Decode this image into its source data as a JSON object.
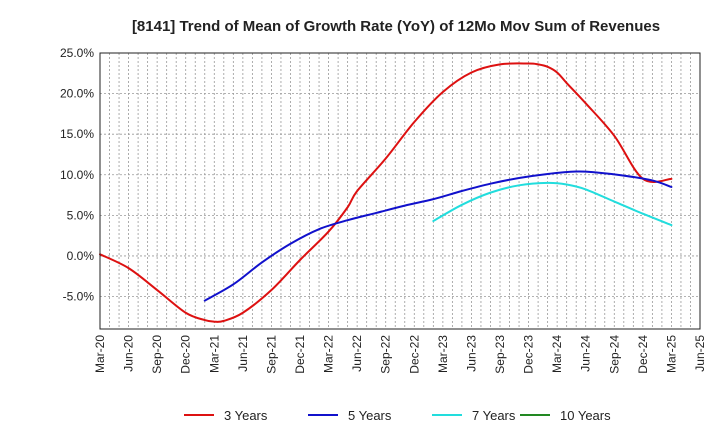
{
  "chart_data": {
    "type": "line",
    "title": "[8141]  Trend of Mean of Growth Rate (YoY) of 12Mo Mov Sum of Revenues",
    "xlabel": "",
    "ylabel": "",
    "ylim": [
      -9,
      25
    ],
    "yticks": [
      25,
      20,
      15,
      10,
      5,
      0,
      -5
    ],
    "ytick_labels": [
      "25.0%",
      "20.0%",
      "15.0%",
      "10.0%",
      "5.0%",
      "0.0%",
      "-5.0%"
    ],
    "x_range": [
      0,
      63
    ],
    "xticks": [
      0,
      3,
      6,
      9,
      12,
      15,
      18,
      21,
      24,
      27,
      30,
      33,
      36,
      39,
      42,
      45,
      48,
      51,
      54,
      57,
      60,
      63
    ],
    "xtick_labels": [
      "Mar-20",
      "Jun-20",
      "Sep-20",
      "Dec-20",
      "Mar-21",
      "Jun-21",
      "Sep-21",
      "Dec-21",
      "Mar-22",
      "Jun-22",
      "Sep-22",
      "Dec-22",
      "Mar-23",
      "Jun-23",
      "Sep-23",
      "Dec-23",
      "Mar-24",
      "Jun-24",
      "Sep-24",
      "Dec-24",
      "Mar-25",
      "Jun-25"
    ],
    "grid": true,
    "legend_position": "bottom",
    "series": [
      {
        "name": "3 Years",
        "color": "#dd1111",
        "x": [
          0,
          3,
          6,
          9,
          11,
          12,
          13,
          15,
          18,
          21,
          24,
          26,
          27,
          30,
          33,
          36,
          39,
          42,
          45,
          46,
          47,
          48,
          49,
          51,
          54,
          57,
          60
        ],
        "values": [
          0.2,
          -1.5,
          -4.2,
          -7.0,
          -7.9,
          -8.1,
          -8.0,
          -7.0,
          -4.2,
          -0.5,
          3.0,
          6.0,
          8.0,
          12.0,
          16.5,
          20.2,
          22.6,
          23.6,
          23.7,
          23.6,
          23.3,
          22.6,
          21.3,
          18.8,
          14.8,
          9.5,
          9.5
        ]
      },
      {
        "name": "5 Years",
        "color": "#1111cc",
        "x": [
          11,
          14,
          17,
          20,
          23,
          26,
          29,
          32,
          35,
          38,
          41,
          44,
          47,
          50,
          52,
          55,
          58,
          60
        ],
        "values": [
          -5.5,
          -3.5,
          -0.8,
          1.5,
          3.3,
          4.4,
          5.3,
          6.2,
          7.0,
          8.0,
          8.9,
          9.6,
          10.1,
          10.4,
          10.3,
          9.9,
          9.3,
          8.5
        ]
      },
      {
        "name": "7 Years",
        "color": "#22dddd",
        "x": [
          35,
          38,
          41,
          44,
          47,
          49,
          51,
          54,
          57,
          60
        ],
        "values": [
          4.3,
          6.3,
          7.8,
          8.7,
          9.0,
          8.8,
          8.2,
          6.7,
          5.2,
          3.8
        ]
      },
      {
        "name": "10 Years",
        "color": "#228822",
        "x": [],
        "values": []
      }
    ]
  }
}
